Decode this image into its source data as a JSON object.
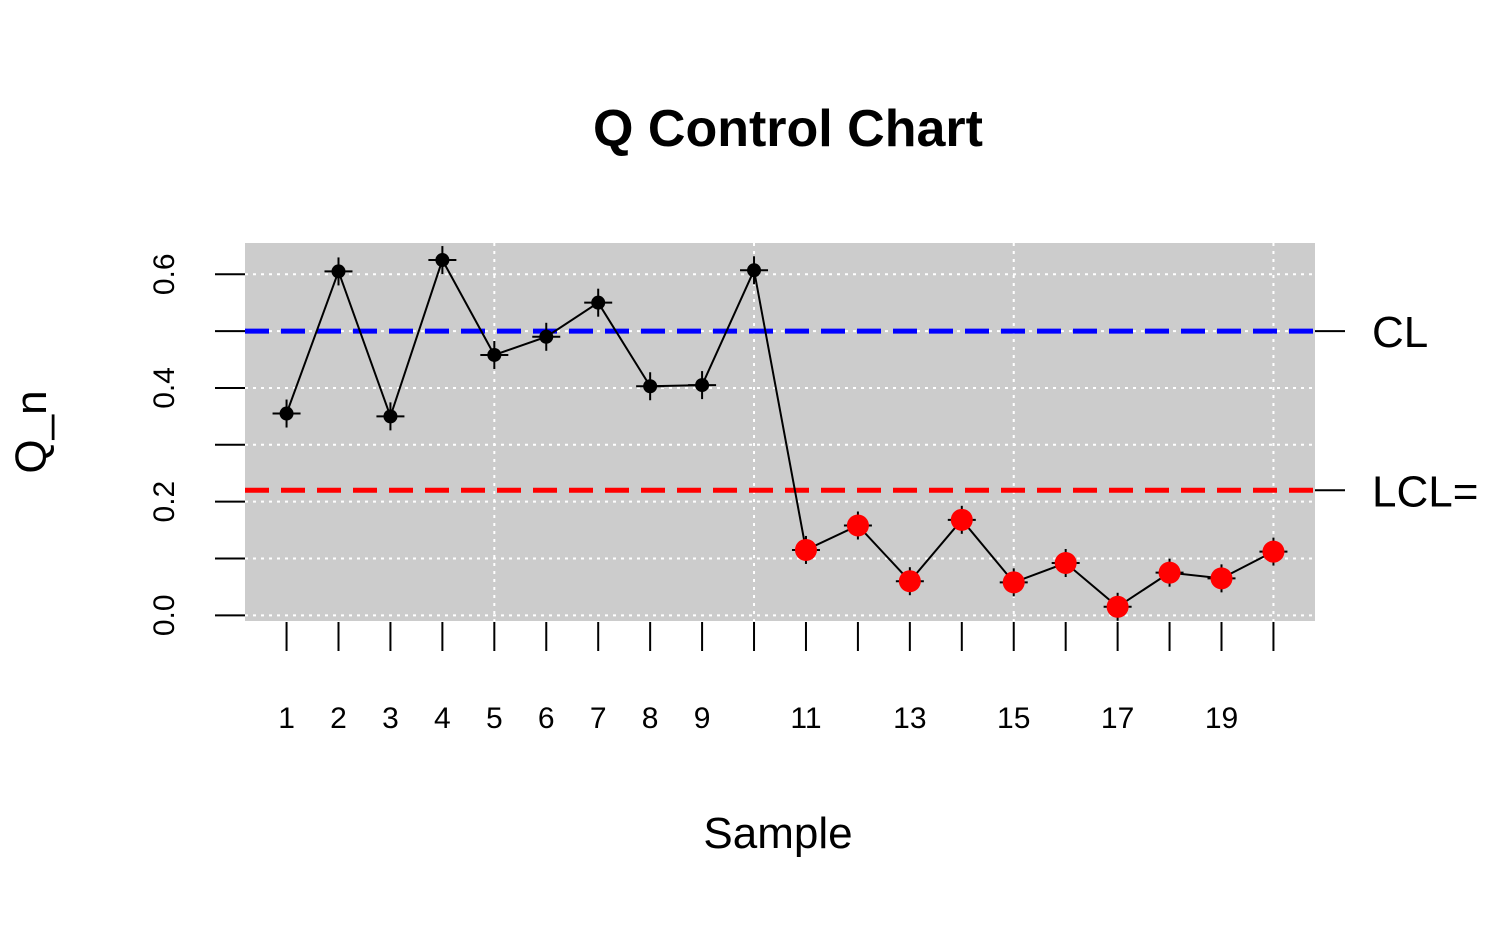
{
  "chart_data": {
    "type": "line",
    "title": "Q Control Chart",
    "xlabel": "Sample",
    "ylabel": "Q_n",
    "x": [
      1,
      2,
      3,
      4,
      5,
      6,
      7,
      8,
      9,
      10,
      11,
      12,
      13,
      14,
      15,
      16,
      17,
      18,
      19,
      20
    ],
    "series": [
      {
        "values": [
          0.355,
          0.605,
          0.35,
          0.625,
          0.458,
          0.49,
          0.55,
          0.403,
          0.405,
          0.607,
          0.115,
          0.158,
          0.06,
          0.168,
          0.058,
          0.092,
          0.015,
          0.075,
          0.065,
          0.112
        ]
      }
    ],
    "out_of_control": [
      11,
      12,
      13,
      14,
      15,
      16,
      17,
      18,
      19,
      20
    ],
    "center_line": {
      "label": "CL",
      "value": 0.5,
      "color": "#0000ff"
    },
    "lower_limit": {
      "label": "LCL=",
      "value": 0.22,
      "color": "#ff0000"
    },
    "xticks": [
      1,
      2,
      3,
      4,
      5,
      6,
      7,
      8,
      9,
      11,
      13,
      15,
      17,
      19
    ],
    "yticks": [
      0.0,
      0.2,
      0.4,
      0.6
    ],
    "yticks_minor": [
      0.1,
      0.3,
      0.5
    ],
    "xlim": [
      0.2,
      20.8
    ],
    "ylim": [
      -0.01,
      0.655
    ],
    "grid": true,
    "colors": {
      "panel": "#cccccc",
      "grid": "#ffffff",
      "in_control": "#000000",
      "out_of_control": "#ff0000",
      "line": "#000000"
    }
  }
}
